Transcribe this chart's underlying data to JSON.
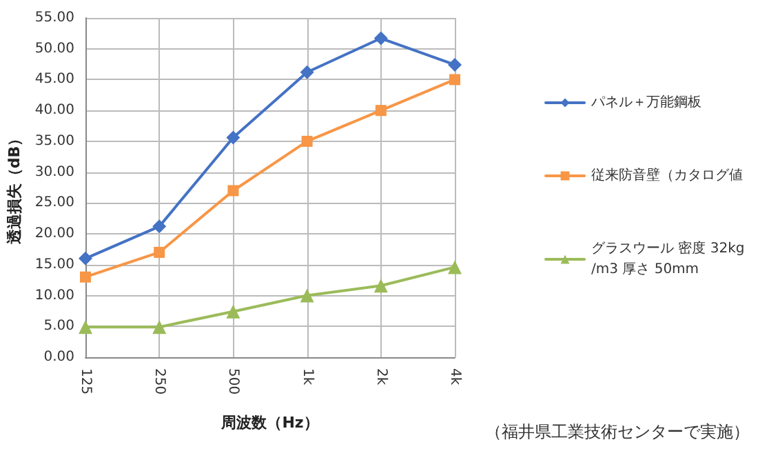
{
  "chart_data": {
    "type": "line",
    "xlabel": "周波数（Hz）",
    "ylabel": "透過損失（dB）",
    "annotations": [
      "（福井県工業技術センターで実施）"
    ],
    "categories": [
      "125",
      "250",
      "500",
      "1k",
      "2k",
      "4k"
    ],
    "series": [
      {
        "name": "パネル＋万能鋼板",
        "color": "#4472c4",
        "marker": "diamond",
        "values": [
          16,
          21.2,
          35.6,
          46.2,
          51.7,
          47.4
        ]
      },
      {
        "name": "従来防音壁（カタログ値",
        "color": "#f79646",
        "marker": "square",
        "values": [
          13,
          17,
          27,
          35,
          40,
          45
        ]
      },
      {
        "name": "グラスウール 密度 32kg/m3 厚さ 50mm",
        "color": "#9bbb59",
        "marker": "triangle",
        "values": [
          4.9,
          4.9,
          7.4,
          10,
          11.6,
          14.6
        ]
      }
    ],
    "ylim": [
      0,
      55
    ],
    "yticks": [
      {
        "value": 0,
        "label": "0.00"
      },
      {
        "value": 5,
        "label": "5.00"
      },
      {
        "value": 10,
        "label": "10.00"
      },
      {
        "value": 15,
        "label": "15.00"
      },
      {
        "value": 20,
        "label": "20.00"
      },
      {
        "value": 25,
        "label": "25.00"
      },
      {
        "value": 30,
        "label": "30.00"
      },
      {
        "value": 35,
        "label": "35.00"
      },
      {
        "value": 40,
        "label": "40.00"
      },
      {
        "value": 45,
        "label": "45.00"
      },
      {
        "value": 50,
        "label": "50.00"
      },
      {
        "value": 55,
        "label": "55.00"
      }
    ],
    "grid": true,
    "legend": "right",
    "line_style": "solid"
  }
}
